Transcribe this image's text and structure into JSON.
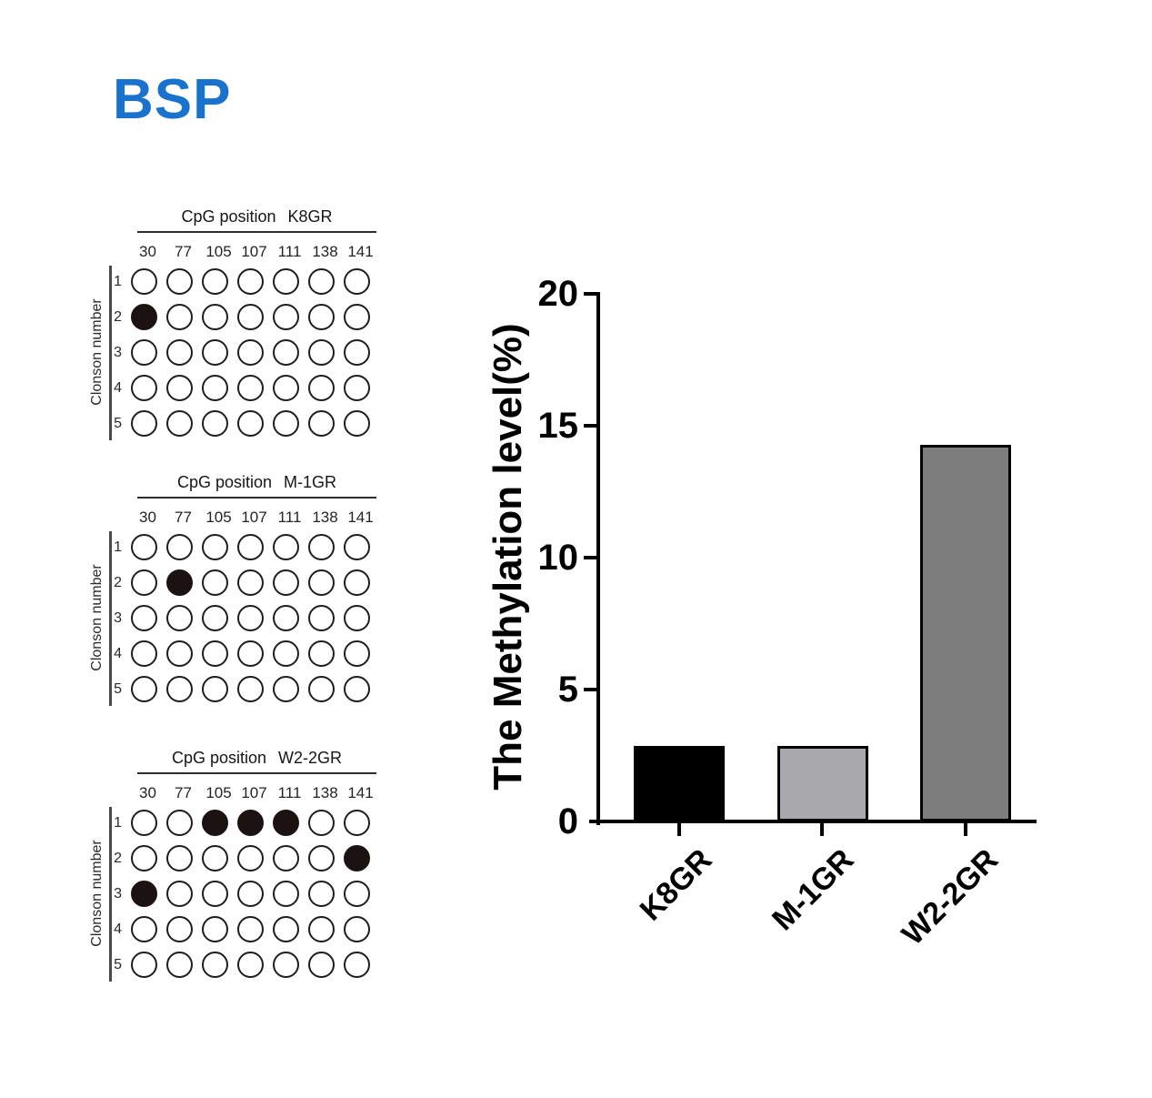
{
  "figure": {
    "title": "BSP",
    "title_color": "#1973cd",
    "background_color": "#ffffff"
  },
  "chart_data": [
    {
      "type": "heatmap",
      "name": "cpg-methylation-clone-panels",
      "title_prefix": "CpG position",
      "row_axis_label": "Clonson number",
      "columns": [
        "30",
        "77",
        "105",
        "107",
        "111",
        "138",
        "141"
      ],
      "rows": [
        "1",
        "2",
        "3",
        "4",
        "5"
      ],
      "filled_color": "#1c1212",
      "open_color": "#ffffff",
      "panels": [
        {
          "name": "K8GR",
          "matrix": [
            [
              0,
              0,
              0,
              0,
              0,
              0,
              0
            ],
            [
              1,
              0,
              0,
              0,
              0,
              0,
              0
            ],
            [
              0,
              0,
              0,
              0,
              0,
              0,
              0
            ],
            [
              0,
              0,
              0,
              0,
              0,
              0,
              0
            ],
            [
              0,
              0,
              0,
              0,
              0,
              0,
              0
            ]
          ]
        },
        {
          "name": "M-1GR",
          "matrix": [
            [
              0,
              0,
              0,
              0,
              0,
              0,
              0
            ],
            [
              0,
              1,
              0,
              0,
              0,
              0,
              0
            ],
            [
              0,
              0,
              0,
              0,
              0,
              0,
              0
            ],
            [
              0,
              0,
              0,
              0,
              0,
              0,
              0
            ],
            [
              0,
              0,
              0,
              0,
              0,
              0,
              0
            ]
          ]
        },
        {
          "name": "W2-2GR",
          "matrix": [
            [
              0,
              0,
              1,
              1,
              1,
              0,
              0
            ],
            [
              0,
              0,
              0,
              0,
              0,
              0,
              1
            ],
            [
              1,
              0,
              0,
              0,
              0,
              0,
              0
            ],
            [
              0,
              0,
              0,
              0,
              0,
              0,
              0
            ],
            [
              0,
              0,
              0,
              0,
              0,
              0,
              0
            ]
          ]
        }
      ]
    },
    {
      "type": "bar",
      "title": "",
      "xlabel": "",
      "ylabel": "The Methylation level(%)",
      "categories": [
        "K8GR",
        "M-1GR",
        "W2-2GR"
      ],
      "values": [
        2.86,
        2.86,
        14.29
      ],
      "ylim": [
        0,
        20
      ],
      "yticks": [
        0,
        5,
        10,
        15,
        20
      ],
      "bar_colors": [
        "#000000",
        "#a9a9ad",
        "#7d7d7d"
      ],
      "bar_border_color": "#000000",
      "axis_color": "#000000",
      "grid": false,
      "legend_position": "none"
    }
  ]
}
